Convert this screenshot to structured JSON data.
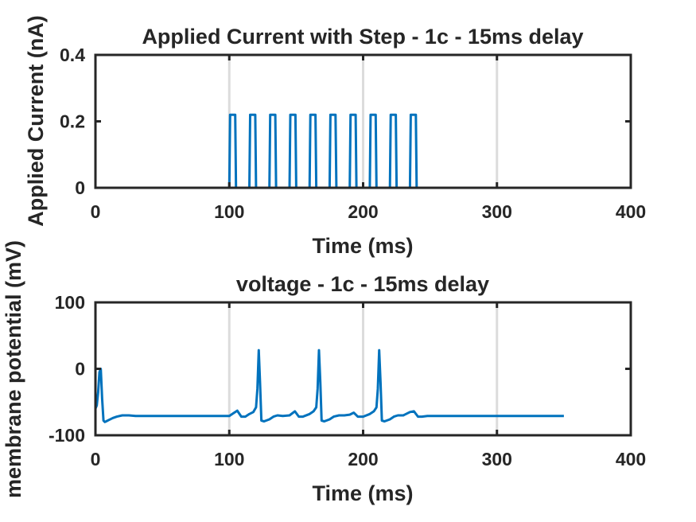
{
  "chart_data": [
    {
      "type": "line",
      "title": "Applied Current with Step - 1c - 15ms delay",
      "xlabel": "Time (ms)",
      "ylabel": "Applied Current (nA)",
      "xlim": [
        0,
        400
      ],
      "ylim": [
        0,
        0.4
      ],
      "xticks": [
        0,
        100,
        200,
        300,
        400
      ],
      "yticks": [
        0,
        0.2,
        0.4
      ],
      "xtick_labels": [
        "0",
        "100",
        "200",
        "300",
        "400"
      ],
      "ytick_labels": [
        "0",
        "0.2",
        "0.4"
      ],
      "grid": true,
      "color": "#0072BD",
      "pulse_amplitude": 0.22,
      "pulse_starts": [
        100,
        115,
        130,
        145,
        160,
        175,
        190,
        205,
        220,
        235
      ],
      "pulse_width": 5,
      "series": [
        {
          "x": [
            0,
            350
          ],
          "y": [
            0,
            0
          ]
        }
      ]
    },
    {
      "type": "line",
      "title": "voltage - 1c - 15ms delay",
      "xlabel": "Time (ms)",
      "ylabel": "membrane potential (mV)",
      "xlim": [
        0,
        400
      ],
      "ylim": [
        -100,
        100
      ],
      "xticks": [
        0,
        100,
        200,
        300,
        400
      ],
      "yticks": [
        -100,
        0,
        100
      ],
      "xtick_labels": [
        "0",
        "100",
        "200",
        "300",
        "400"
      ],
      "ytick_labels": [
        "-100",
        "0",
        "100"
      ],
      "grid": true,
      "color": "#0072BD",
      "series": [
        {
          "x": [
            0,
            1,
            2,
            3,
            4,
            5,
            6,
            7,
            8,
            10,
            13,
            16,
            20,
            25,
            30,
            40,
            60,
            80,
            100,
            103,
            106,
            109,
            112,
            115,
            118,
            120,
            121,
            122,
            123,
            124,
            126,
            130,
            133,
            136,
            140,
            145,
            149,
            152,
            155,
            160,
            163,
            165,
            166,
            167,
            168,
            169,
            171,
            175,
            178,
            182,
            186,
            190,
            193,
            196,
            200,
            205,
            208,
            210,
            211,
            212,
            213,
            214,
            216,
            220,
            223,
            226,
            230,
            235,
            238,
            241,
            244,
            248,
            252,
            258,
            265,
            280,
            300,
            320,
            340,
            350
          ],
          "y": [
            -60,
            -55,
            -35,
            -5,
            0,
            -45,
            -78,
            -80,
            -79,
            -77,
            -74,
            -72,
            -70,
            -70,
            -71,
            -71,
            -71,
            -71,
            -71,
            -67,
            -63,
            -72,
            -72,
            -68,
            -65,
            -58,
            -30,
            28,
            -20,
            -78,
            -79,
            -76,
            -72,
            -70,
            -71,
            -70,
            -64,
            -72,
            -72,
            -68,
            -64,
            -58,
            -30,
            28,
            -20,
            -78,
            -79,
            -76,
            -72,
            -70,
            -70,
            -69,
            -66,
            -72,
            -72,
            -68,
            -64,
            -58,
            -30,
            28,
            -20,
            -78,
            -79,
            -76,
            -72,
            -70,
            -70,
            -65,
            -64,
            -72,
            -72,
            -71,
            -71,
            -71,
            -71,
            -71,
            -71,
            -71,
            -71,
            -71
          ]
        }
      ]
    }
  ]
}
